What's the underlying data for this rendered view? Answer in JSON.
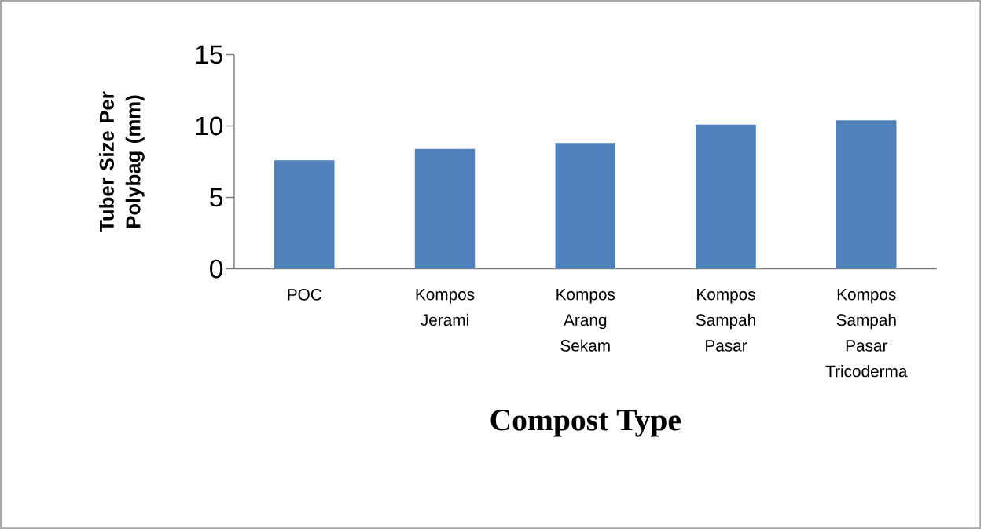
{
  "chart_data": {
    "type": "bar",
    "xlabel": "Compost Type",
    "ylabel": "Tuber Size Per Polybag (mm)",
    "categories": [
      "POC",
      "Kompos Jerami",
      "Kompos Arang Sekam",
      "Kompos Sampah Pasar",
      "Kompos Sampah Pasar Tricoderma"
    ],
    "values": [
      7.6,
      8.4,
      8.8,
      10.1,
      10.4
    ],
    "color": "#4f81bd",
    "ylim": [
      0,
      15
    ],
    "yticks": [
      0,
      5,
      10,
      15
    ],
    "grid": false
  }
}
